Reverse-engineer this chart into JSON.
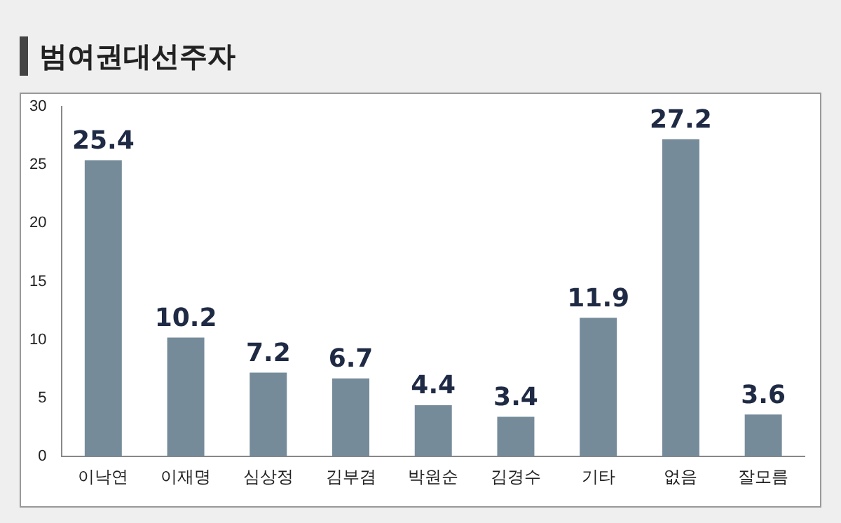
{
  "chart_data": {
    "type": "bar",
    "title": "범여권대선주자",
    "categories": [
      "이낙연",
      "이재명",
      "심상정",
      "김부겸",
      "박원순",
      "김경수",
      "기타",
      "없음",
      "잘모름"
    ],
    "values": [
      25.4,
      10.2,
      7.2,
      6.7,
      4.4,
      3.4,
      11.9,
      27.2,
      3.6
    ],
    "color": "#758b9a",
    "ylim": [
      0,
      30
    ],
    "yticks": [
      0,
      5,
      10,
      15,
      20,
      25,
      30
    ],
    "grid": false,
    "data_labels": true
  }
}
